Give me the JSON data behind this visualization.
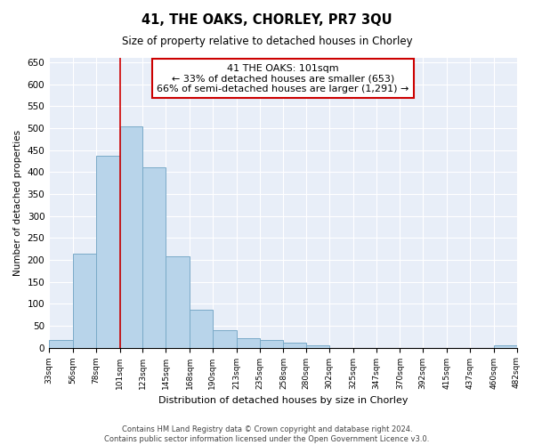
{
  "title": "41, THE OAKS, CHORLEY, PR7 3QU",
  "subtitle": "Size of property relative to detached houses in Chorley",
  "xlabel": "Distribution of detached houses by size in Chorley",
  "ylabel": "Number of detached properties",
  "bins": [
    33,
    56,
    78,
    101,
    123,
    145,
    168,
    190,
    213,
    235,
    258,
    280,
    302,
    325,
    347,
    370,
    392,
    415,
    437,
    460,
    482
  ],
  "values": [
    18,
    213,
    437,
    503,
    410,
    207,
    87,
    40,
    22,
    18,
    12,
    5,
    0,
    0,
    0,
    0,
    0,
    0,
    0,
    5
  ],
  "bar_color": "#b8d4ea",
  "bar_edge_color": "#7aaac8",
  "vline_x": 101,
  "vline_color": "#cc0000",
  "annotation_title": "41 THE OAKS: 101sqm",
  "annotation_line1": "← 33% of detached houses are smaller (653)",
  "annotation_line2": "66% of semi-detached houses are larger (1,291) →",
  "annotation_box_color": "white",
  "annotation_box_edge": "#cc0000",
  "ylim": [
    0,
    660
  ],
  "yticks": [
    0,
    50,
    100,
    150,
    200,
    250,
    300,
    350,
    400,
    450,
    500,
    550,
    600,
    650
  ],
  "tick_labels": [
    "33sqm",
    "56sqm",
    "78sqm",
    "101sqm",
    "123sqm",
    "145sqm",
    "168sqm",
    "190sqm",
    "213sqm",
    "235sqm",
    "258sqm",
    "280sqm",
    "302sqm",
    "325sqm",
    "347sqm",
    "370sqm",
    "392sqm",
    "415sqm",
    "437sqm",
    "460sqm",
    "482sqm"
  ],
  "footer1": "Contains HM Land Registry data © Crown copyright and database right 2024.",
  "footer2": "Contains public sector information licensed under the Open Government Licence v3.0.",
  "bg_color": "#e8eef8",
  "grid_color": "#ffffff"
}
